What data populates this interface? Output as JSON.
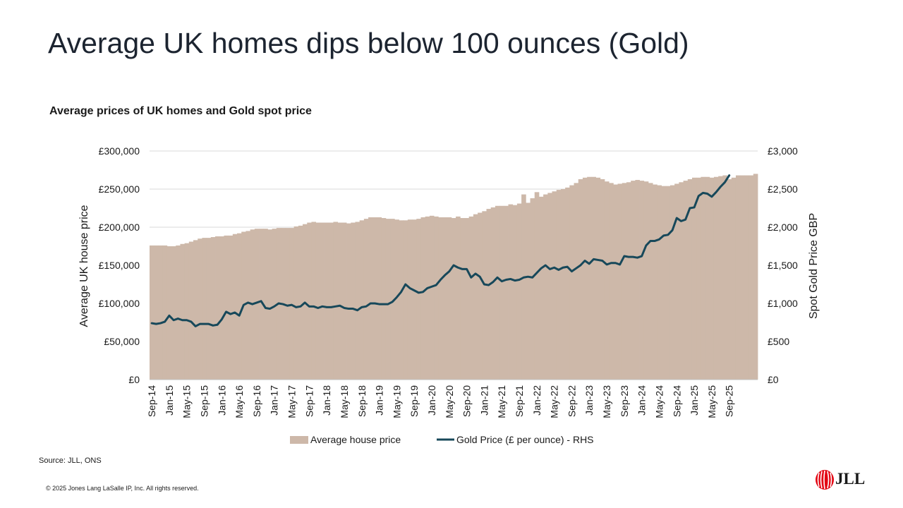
{
  "slide": {
    "title": "Average UK homes dips below 100 ounces (Gold)",
    "source": "Source: JLL, ONS",
    "copyright": "© 2025 Jones Lang LaSalle IP, Inc. All rights reserved.",
    "logo_text": "JLL"
  },
  "colors": {
    "area_fill": "#cdb8a9",
    "gold_line": "#17485a",
    "gridline": "#d9d9d9",
    "logo_red": "#e30613"
  },
  "chart_data": {
    "type": "bar",
    "title": "Average prices of UK homes and Gold spot price",
    "ylabel": "Average UK house price",
    "y2label": "Spot Gold Price GBP",
    "ylim": [
      0,
      300000
    ],
    "y2lim": [
      0,
      3000
    ],
    "yticks": [
      "£0",
      "£50,000",
      "£100,000",
      "£150,000",
      "£200,000",
      "£250,000",
      "£300,000"
    ],
    "y2ticks": [
      "£0",
      "£500",
      "£1,000",
      "£1,500",
      "£2,000",
      "£2,500",
      "£3,000"
    ],
    "grid": true,
    "legend_position": "bottom",
    "start_month": "Sep-14",
    "x_tick_labels": [
      "Sep-14",
      "Jan-15",
      "May-15",
      "Sep-15",
      "Jan-16",
      "May-16",
      "Sep-16",
      "Jan-17",
      "May-17",
      "Sep-17",
      "Jan-18",
      "May-18",
      "Sep-18",
      "Jan-19",
      "May-19",
      "Sep-19",
      "Jan-20",
      "May-20",
      "Sep-20",
      "Jan-21",
      "May-21",
      "Sep-21",
      "Jan-22",
      "May-22",
      "Sep-22",
      "Jan-23",
      "May-23",
      "Sep-23",
      "Jan-24",
      "May-24",
      "Sep-24",
      "Jan-25",
      "May-25",
      "Sep-25"
    ],
    "series": [
      {
        "name": "Average house price",
        "type": "bar",
        "axis": "left",
        "values": [
          176000,
          176000,
          176000,
          176000,
          175000,
          175000,
          176000,
          178000,
          179000,
          181000,
          183000,
          185000,
          186000,
          186000,
          187000,
          188000,
          188000,
          189000,
          189000,
          191000,
          192000,
          194000,
          195000,
          197000,
          198000,
          198000,
          198000,
          197000,
          198000,
          199000,
          199000,
          199000,
          199000,
          201000,
          202000,
          204000,
          206000,
          207000,
          206000,
          206000,
          206000,
          206000,
          207000,
          206000,
          206000,
          205000,
          206000,
          207000,
          209000,
          211000,
          213000,
          213000,
          213000,
          212000,
          211000,
          211000,
          210000,
          209000,
          209000,
          210000,
          210000,
          211000,
          213000,
          214000,
          215000,
          214000,
          213000,
          213000,
          213000,
          212000,
          214000,
          212000,
          212000,
          214000,
          217000,
          219000,
          221000,
          224000,
          226000,
          228000,
          228000,
          228000,
          230000,
          229000,
          231000,
          243000,
          232000,
          238000,
          246000,
          240000,
          243000,
          245000,
          247000,
          249000,
          250000,
          252000,
          255000,
          258000,
          263000,
          265000,
          266000,
          266000,
          265000,
          263000,
          260000,
          258000,
          256000,
          257000,
          258000,
          259000,
          261000,
          262000,
          261000,
          260000,
          258000,
          256000,
          255000,
          254000,
          254000,
          255000,
          257000,
          259000,
          261000,
          263000,
          265000,
          265000,
          266000,
          266000,
          265000,
          266000,
          267000,
          268000,
          263000,
          265000,
          268000,
          268000,
          268000,
          268000,
          270000
        ]
      },
      {
        "name": "Gold Price (£ per ounce) - RHS",
        "type": "line",
        "axis": "right",
        "values": [
          740,
          730,
          740,
          760,
          840,
          780,
          800,
          780,
          780,
          760,
          700,
          730,
          730,
          730,
          710,
          720,
          790,
          890,
          860,
          880,
          840,
          980,
          1010,
          990,
          1010,
          1030,
          940,
          930,
          960,
          1000,
          990,
          970,
          980,
          950,
          960,
          1010,
          960,
          960,
          940,
          960,
          950,
          950,
          960,
          970,
          940,
          930,
          930,
          910,
          950,
          960,
          1000,
          1000,
          990,
          990,
          990,
          1020,
          1080,
          1150,
          1250,
          1200,
          1170,
          1140,
          1150,
          1200,
          1220,
          1240,
          1310,
          1370,
          1420,
          1500,
          1470,
          1450,
          1450,
          1340,
          1390,
          1350,
          1250,
          1240,
          1280,
          1340,
          1290,
          1310,
          1320,
          1300,
          1310,
          1340,
          1350,
          1340,
          1400,
          1460,
          1500,
          1450,
          1470,
          1440,
          1470,
          1480,
          1420,
          1460,
          1500,
          1560,
          1520,
          1580,
          1570,
          1560,
          1510,
          1530,
          1530,
          1510,
          1620,
          1610,
          1610,
          1600,
          1620,
          1760,
          1820,
          1820,
          1840,
          1890,
          1900,
          1960,
          2120,
          2080,
          2100,
          2250,
          2260,
          2410,
          2450,
          2440,
          2400,
          2460,
          2530,
          2590,
          2680
        ]
      }
    ]
  }
}
